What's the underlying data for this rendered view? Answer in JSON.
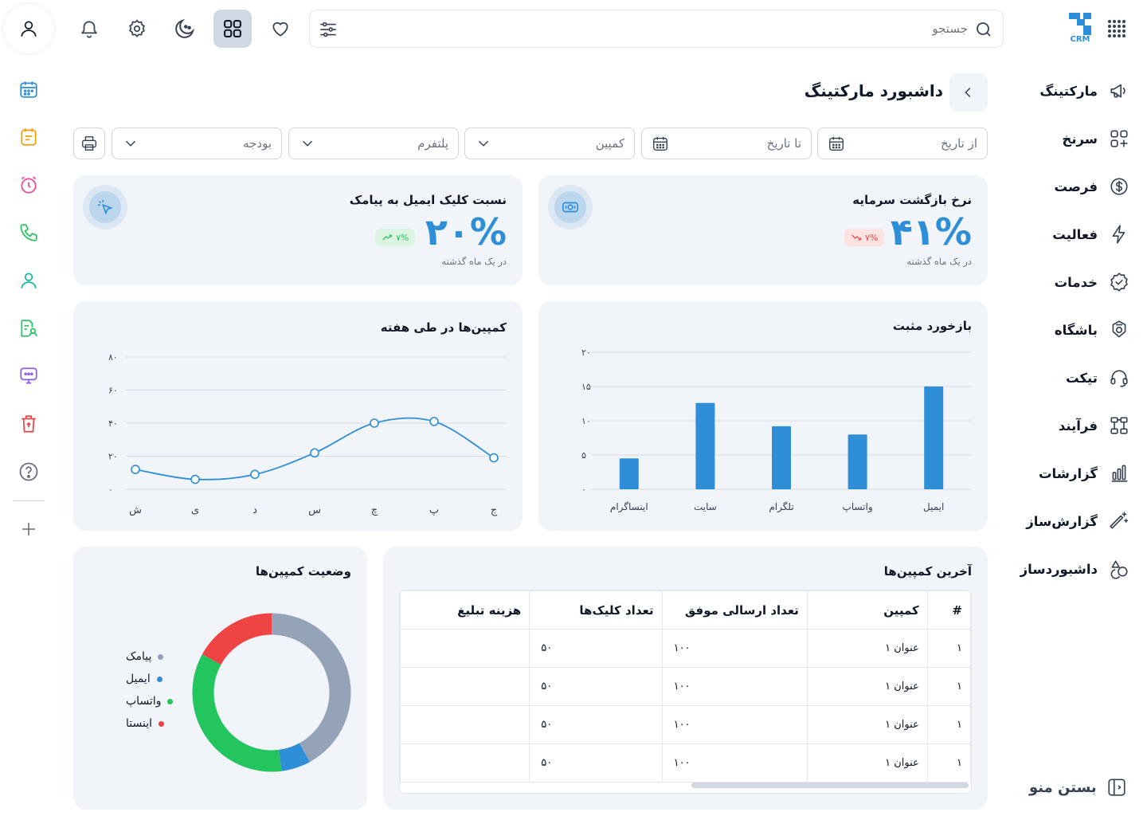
{
  "header": {
    "search_placeholder": "جستجو",
    "logo_text": "CRM"
  },
  "sidebar": {
    "items": [
      {
        "label": "مارکتینگ",
        "icon": "megaphone-icon"
      },
      {
        "label": "سرنخ",
        "icon": "grid-plus-icon"
      },
      {
        "label": "فرصت",
        "icon": "dollar-icon"
      },
      {
        "label": "فعالیت",
        "icon": "bolt-icon"
      },
      {
        "label": "خدمات",
        "icon": "badge-check-icon"
      },
      {
        "label": "باشگاه",
        "icon": "club-icon"
      },
      {
        "label": "تیکت",
        "icon": "headset-icon"
      },
      {
        "label": "فرآیند",
        "icon": "process-icon"
      },
      {
        "label": "گزارشات",
        "icon": "bar-chart-icon"
      },
      {
        "label": "گزارش‌ساز",
        "icon": "magic-wand-icon"
      },
      {
        "label": "داشبوردساز",
        "icon": "shapes-icon"
      }
    ],
    "close_menu": "بستن منو"
  },
  "page": {
    "title": "داشبورد مارکتینگ"
  },
  "filters": {
    "from_date": "از تاریخ",
    "to_date": "تا تاریخ",
    "campaign": "کمپین",
    "platform": "پلتفرم",
    "budget": "بودجه"
  },
  "kpis": [
    {
      "title": "نرخ بازگشت سرمایه",
      "value": "۴۱%",
      "change": "۷%",
      "trend": "down",
      "note": "در یک ماه گذشته"
    },
    {
      "title": "نسبت کلیک ایمیل به پیامک",
      "value": "۲۰%",
      "change": "۷%",
      "trend": "up",
      "note": "در یک ماه گذشته"
    }
  ],
  "charts": {
    "positive_feedback_title": "بازخورد مثبت",
    "weekly_title": "کمپین‌ها در طی هفته",
    "status_title": "وضعیت کمپین‌ها"
  },
  "chart_data": [
    {
      "type": "bar",
      "title": "بازخورد مثبت",
      "categories": [
        "ایمیل",
        "واتساپ",
        "تلگرام",
        "سایت",
        "اینساگرام"
      ],
      "values": [
        15,
        8,
        9.2,
        12.6,
        4.5
      ],
      "yticks": [
        "۰",
        "۵",
        "۱۰",
        "۱۵",
        "۲۰"
      ],
      "ylim": [
        0,
        20
      ],
      "color": "#2e8fd8"
    },
    {
      "type": "line",
      "title": "کمپین‌ها در طی هفته",
      "categories": [
        "ج",
        "پ",
        "چ",
        "س",
        "د",
        "ی",
        "ش"
      ],
      "values": [
        19,
        41,
        40,
        22,
        9,
        6,
        12
      ],
      "yticks": [
        "۰",
        "۲۰",
        "۴۰",
        "۶۰",
        "۸۰"
      ],
      "ylim": [
        0,
        80
      ],
      "color": "#2e8fd8"
    },
    {
      "type": "pie",
      "title": "وضعیت کمپین‌ها",
      "series": [
        {
          "name": "پیامک",
          "value": 42,
          "color": "#94a3b8"
        },
        {
          "name": "ایمیل",
          "value": 6,
          "color": "#2e8fd8"
        },
        {
          "name": "واتساپ",
          "value": 35,
          "color": "#22c55e"
        },
        {
          "name": "اینستا",
          "value": 17,
          "color": "#ef4444"
        }
      ]
    }
  ],
  "table": {
    "title": "آخرین کمپین‌ها",
    "headers": [
      "#",
      "کمپین",
      "تعداد ارسالی موفق",
      "تعداد کلیک‌ها",
      "هزینه تبلیغ"
    ],
    "rows": [
      [
        "۱",
        "عنوان ۱",
        "۱۰۰",
        "۵۰",
        ""
      ],
      [
        "۱",
        "عنوان ۱",
        "۱۰۰",
        "۵۰",
        ""
      ],
      [
        "۱",
        "عنوان ۱",
        "۱۰۰",
        "۵۰",
        ""
      ],
      [
        "۱",
        "عنوان ۱",
        "۱۰۰",
        "۵۰",
        ""
      ]
    ]
  }
}
